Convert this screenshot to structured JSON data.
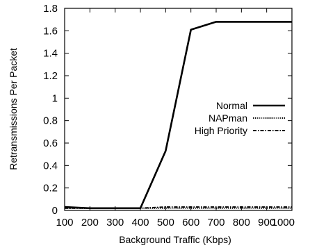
{
  "chart_data": {
    "type": "line",
    "title": "",
    "xlabel": "Background Traffic (Kbps)",
    "ylabel": "Retransmissions Per Packet",
    "xlim": [
      100,
      1000
    ],
    "ylim": [
      0,
      1.8
    ],
    "x_ticks": [
      100,
      200,
      300,
      400,
      500,
      600,
      700,
      800,
      900,
      1000
    ],
    "y_ticks": [
      0,
      0.2,
      0.4,
      0.6,
      0.8,
      1,
      1.2,
      1.4,
      1.6,
      1.8
    ],
    "x_tick_labels": [
      "100",
      "200",
      "300",
      "400",
      "500",
      "600",
      "700",
      "800",
      "900",
      "1000"
    ],
    "y_tick_labels": [
      "0",
      "0.2",
      "0.4",
      "0.6",
      "0.8",
      "1",
      "1.2",
      "1.4",
      "1.6",
      "1.8"
    ],
    "grid": false,
    "legend_position": "right-middle",
    "x": [
      100,
      200,
      300,
      400,
      500,
      600,
      700,
      800,
      900,
      1000
    ],
    "series": [
      {
        "name": "Normal",
        "style": "solid-thick",
        "values": [
          0.03,
          0.02,
          0.02,
          0.02,
          0.53,
          1.61,
          1.68,
          1.68,
          1.68,
          1.68
        ]
      },
      {
        "name": "NAPman",
        "style": "dotted",
        "values": [
          0.02,
          0.02,
          0.02,
          0.02,
          0.02,
          0.02,
          0.02,
          0.02,
          0.02,
          0.02
        ]
      },
      {
        "name": "High Priority",
        "style": "dash-dot",
        "values": [
          0.02,
          0.02,
          0.02,
          0.02,
          0.03,
          0.03,
          0.03,
          0.03,
          0.03,
          0.03
        ]
      }
    ]
  }
}
